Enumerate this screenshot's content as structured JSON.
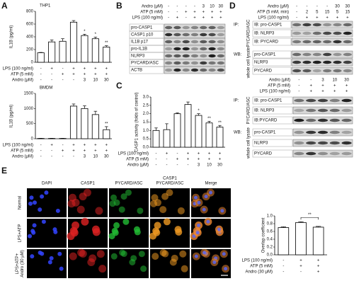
{
  "panels": [
    "A",
    "B",
    "C",
    "D",
    "E"
  ],
  "chart_data": [
    {
      "type": "bar",
      "title": "THP1",
      "y_label": "IL1B (pg/ml)",
      "ylim": [
        0,
        800
      ],
      "yticks": [
        0,
        200,
        400,
        600,
        800
      ],
      "color": "#ffffff",
      "values": [
        150,
        320,
        330,
        630,
        420,
        370,
        240
      ],
      "errors": [
        5,
        30,
        40,
        25,
        20,
        25,
        20
      ],
      "value_annotations": [
        null,
        null,
        null,
        null,
        "*",
        "*",
        "**"
      ],
      "conditions": [
        {
          "name": "LPS (100 ng/ml)",
          "values": [
            "-",
            "+",
            "-",
            "+",
            "+",
            "+",
            "+"
          ]
        },
        {
          "name": "ATP (5 mM)",
          "values": [
            "-",
            "-",
            "+",
            "+",
            "+",
            "+",
            "+"
          ]
        },
        {
          "name": "Andro (μM)",
          "values": [
            "-",
            "-",
            "-",
            "-",
            "3",
            "10",
            "30"
          ]
        }
      ]
    },
    {
      "type": "bar",
      "title": "BMDM",
      "y_label": "IL1B (pg/ml)",
      "ylim": [
        0,
        1500
      ],
      "yticks": [
        0,
        500,
        1000,
        1500
      ],
      "color": "#ffffff",
      "values": [
        10,
        10,
        10,
        1080,
        1000,
        800,
        300
      ],
      "errors": [
        5,
        5,
        5,
        70,
        90,
        110,
        100
      ],
      "value_annotations": [
        null,
        null,
        null,
        null,
        null,
        null,
        "**"
      ],
      "conditions": [
        {
          "name": "LPS (100 ng/ml)",
          "values": [
            "-",
            "+",
            "-",
            "+",
            "+",
            "+",
            "+"
          ]
        },
        {
          "name": "ATP (5 mM)",
          "values": [
            "-",
            "-",
            "+",
            "+",
            "+",
            "+",
            "+"
          ]
        },
        {
          "name": "Andro (μM)",
          "values": [
            "-",
            "-",
            "-",
            "-",
            "3",
            "10",
            "30"
          ]
        }
      ]
    },
    {
      "type": "bar",
      "y_label": "CASP1 activity (folds of control)",
      "ylim": [
        0,
        3
      ],
      "yticks": [
        {
          "value": 0,
          "label": "0.0"
        },
        0.5,
        {
          "value": 1,
          "label": "1.0"
        },
        1.5,
        {
          "value": 2,
          "label": "2.0"
        },
        2.5,
        {
          "value": 3,
          "label": "3.0"
        }
      ],
      "color": "#ffffff",
      "values": [
        1.0,
        1.05,
        2.0,
        2.55,
        1.9,
        1.45,
        1.2
      ],
      "errors": [
        0.15,
        0.35,
        0.05,
        0.15,
        0.1,
        0.1,
        0.1
      ],
      "value_annotations": [
        null,
        null,
        null,
        null,
        "*",
        "**",
        "**"
      ],
      "conditions": [
        {
          "name": "LPS (100 ng/ml)",
          "values": [
            "-",
            "+",
            "-",
            "+",
            "+",
            "+",
            "+"
          ]
        },
        {
          "name": "ATP (5 mM)",
          "values": [
            "-",
            "-",
            "+",
            "+",
            "+",
            "+",
            "+"
          ]
        },
        {
          "name": "Andro (μM)",
          "values": [
            "-",
            "-",
            "-",
            "-",
            "3",
            "10",
            "30"
          ]
        }
      ]
    },
    {
      "type": "bar",
      "y_label": "Overlap coefficient",
      "ylim": [
        0,
        1
      ],
      "yticks": [
        {
          "value": 0,
          "label": "0.0"
        },
        0.2,
        0.4,
        0.6,
        0.8,
        {
          "value": 1,
          "label": "1.0"
        }
      ],
      "color": "#ffffff",
      "values": [
        0.7,
        0.83,
        0.71
      ],
      "errors": [
        0.02,
        0.02,
        0.02
      ],
      "annotation": "**",
      "conditions": [
        {
          "name": "LPS (100 ng/ml)",
          "values": [
            "-",
            "+",
            "+"
          ]
        },
        {
          "name": "ATP (5 mM)",
          "values": [
            "-",
            "+",
            "+"
          ]
        },
        {
          "name": "Andro (30 μM)",
          "values": [
            "-",
            "-",
            "+"
          ]
        }
      ]
    }
  ],
  "blots": {
    "B": {
      "header": [
        {
          "name": "Andro (μM)",
          "values": [
            "-",
            "-",
            "-",
            "-",
            "3",
            "10",
            "30"
          ]
        },
        {
          "name": "ATP (5 mM)",
          "values": [
            "-",
            "-",
            "+",
            "+",
            "+",
            "+",
            "+"
          ]
        },
        {
          "name": "LPS (100 ng/ml)",
          "values": [
            "-",
            "+",
            "-",
            "+",
            "+",
            "+",
            "+"
          ]
        }
      ],
      "groups": [
        {
          "bands": [
            "pro-CASP1",
            "CASP1 p10",
            "IL1B p17",
            "pro-IL1B",
            "NLRP3",
            "PYCARD/ASC",
            "ACTB"
          ]
        }
      ]
    },
    "D_top": {
      "header": [
        {
          "name": "Andro (μM)",
          "values": [
            "-",
            "-",
            "-",
            "-",
            "30",
            "30"
          ]
        },
        {
          "name": "ATP (5 mM, min)",
          "values": [
            "-",
            "2",
            "5",
            "15",
            "5",
            "15"
          ]
        },
        {
          "name": "LPS (100 ng/ml)",
          "values": [
            "-",
            "+",
            "+",
            "+",
            "+",
            "+"
          ]
        }
      ],
      "groups": [
        {
          "method": "IP:",
          "target": "PYCARD/ASC",
          "bands": [
            "IB: pro-CASP1",
            "IB: NLRP3",
            "IB: PYCARD"
          ]
        },
        {
          "method": "WB:",
          "target": "whole cell lysate",
          "bands": [
            "pro-CASP1",
            "NLRP3",
            "PYCARD"
          ]
        }
      ]
    },
    "D_bottom": {
      "header": [
        {
          "name": "Andro (μM)",
          "values": [
            "-",
            "-",
            "3",
            "10",
            "30"
          ]
        },
        {
          "name": "ATP (5 mM)",
          "values": [
            "-",
            "+",
            "+",
            "+",
            "+"
          ]
        },
        {
          "name": "LPS (100 ng/ml)",
          "values": [
            "-",
            "+",
            "+",
            "+",
            "+"
          ]
        }
      ],
      "groups": [
        {
          "method": "IP:",
          "target": "PYCARD/ASC",
          "bands": [
            "IB: pro-CASP1",
            "IB: NLRP3",
            "IB:PYCARD"
          ]
        },
        {
          "method": "WB:",
          "target": "whole cell lysate",
          "bands": [
            "pro-CASP1",
            "NLRP3",
            "PYCARD"
          ]
        }
      ]
    }
  },
  "microscopy": {
    "columns": [
      [
        "DAPI"
      ],
      [
        "CASP1"
      ],
      [
        "PYCARD/ASC"
      ],
      [
        "CASP1",
        "PYCARD/ASC"
      ],
      [
        "Merge"
      ]
    ],
    "rows": [
      [
        "Normal"
      ],
      [
        "LPS+ATP"
      ],
      [
        "LPS+ATP+",
        "Andro (30 μM)"
      ]
    ]
  }
}
